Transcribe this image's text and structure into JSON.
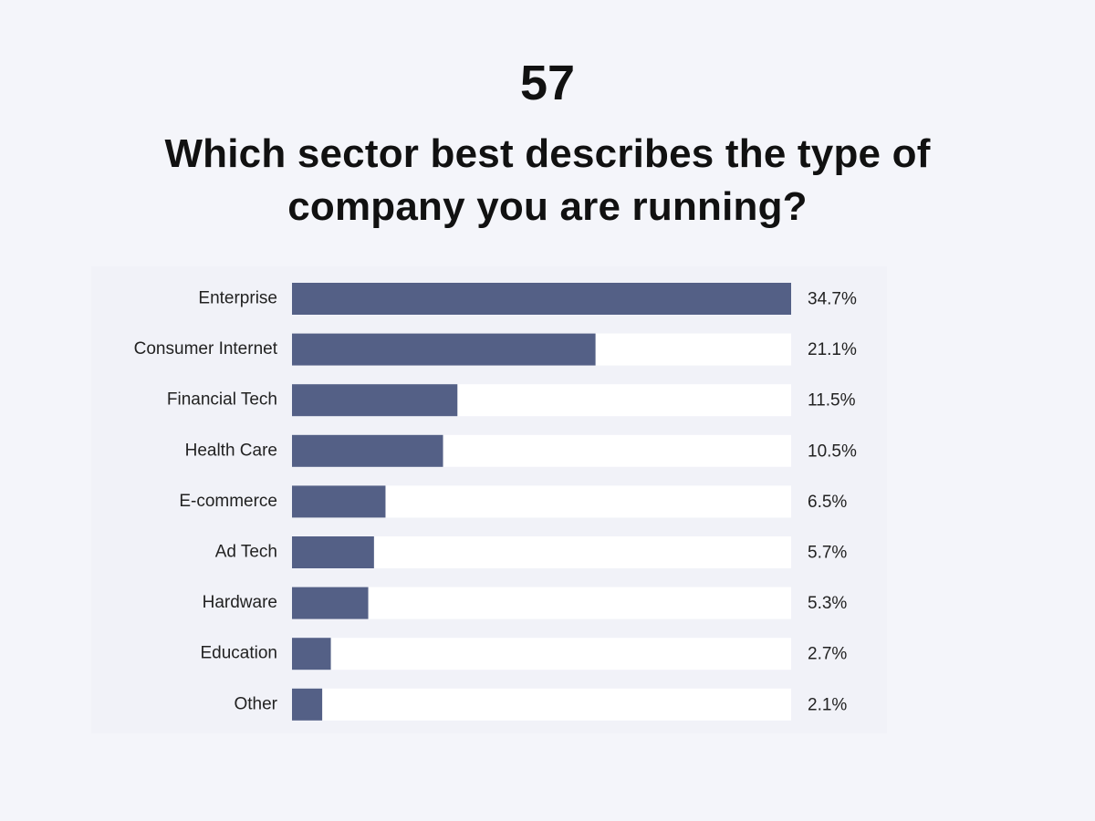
{
  "header": {
    "number": "57",
    "question": "Which sector best describes the type of company you are running?"
  },
  "colors": {
    "background": "#f4f5fa",
    "bar": "#546086",
    "track": "#ffffff",
    "text": "#222222"
  },
  "chart_data": {
    "type": "bar",
    "orientation": "horizontal",
    "title": "Which sector best describes the type of company you are running?",
    "categories": [
      "Enterprise",
      "Consumer Internet",
      "Financial Tech",
      "Health Care",
      "E-commerce",
      "Ad Tech",
      "Hardware",
      "Education",
      "Other"
    ],
    "values": [
      34.7,
      21.1,
      11.5,
      10.5,
      6.5,
      5.7,
      5.3,
      2.7,
      2.1
    ],
    "value_labels": [
      "34.7%",
      "21.1%",
      "11.5%",
      "10.5%",
      "6.5%",
      "5.7%",
      "5.3%",
      "2.7%",
      "2.1%"
    ],
    "xlim": [
      0,
      34.7
    ],
    "grid": false,
    "legend": "none"
  }
}
